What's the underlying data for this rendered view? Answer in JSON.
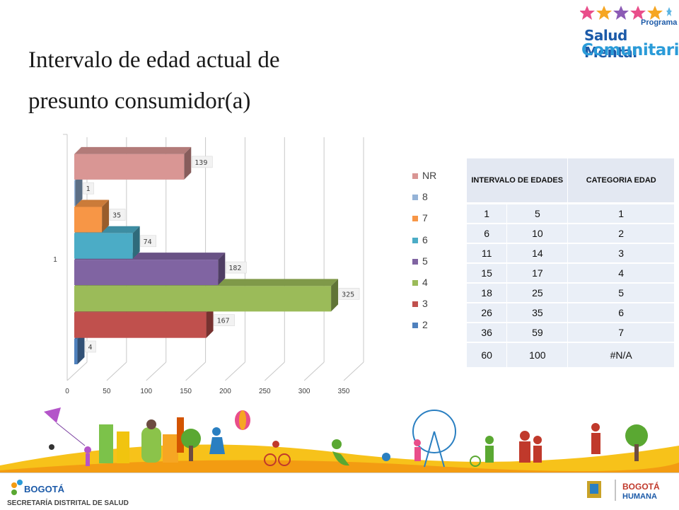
{
  "slide": {
    "title_line1": "Intervalo de edad actual de",
    "title_line2": "presunto consumidor(a)"
  },
  "logo": {
    "program": "Programa",
    "line1": "Salud Mental",
    "line2": "Comunitaria"
  },
  "chart_data": {
    "type": "bar",
    "orientation": "horizontal",
    "style": "3d-clustered",
    "category": "1",
    "series": [
      {
        "name": "2",
        "value": 4,
        "color": "#4f81bd"
      },
      {
        "name": "3",
        "value": 167,
        "color": "#c0504d"
      },
      {
        "name": "4",
        "value": 325,
        "color": "#9bbb59"
      },
      {
        "name": "5",
        "value": 182,
        "color": "#8064a2"
      },
      {
        "name": "6",
        "value": 74,
        "color": "#4bacc6"
      },
      {
        "name": "7",
        "value": 35,
        "color": "#f79646"
      },
      {
        "name": "8",
        "value": 1,
        "color": "#95b3d7"
      },
      {
        "name": "NR",
        "value": 139,
        "color": "#d99694"
      }
    ],
    "xticks": [
      "0",
      "50",
      "100",
      "150",
      "200",
      "250",
      "300",
      "350"
    ],
    "xlim": [
      0,
      350
    ],
    "grid": true,
    "legend_position": "right",
    "legend_order": [
      "NR",
      "8",
      "7",
      "6",
      "5",
      "4",
      "3",
      "2"
    ]
  },
  "table": {
    "header_interval": "INTERVALO DE EDADES",
    "header_category": "CATEGORIA EDAD",
    "rows": [
      {
        "from": "1",
        "to": "5",
        "cat": "1"
      },
      {
        "from": "6",
        "to": "10",
        "cat": "2"
      },
      {
        "from": "11",
        "to": "14",
        "cat": "3"
      },
      {
        "from": "15",
        "to": "17",
        "cat": "4"
      },
      {
        "from": "18",
        "to": "25",
        "cat": "5"
      },
      {
        "from": "26",
        "to": "35",
        "cat": "6"
      },
      {
        "from": "36",
        "to": "59",
        "cat": "7"
      },
      {
        "from": "60",
        "to": "100",
        "cat": "#N/A"
      }
    ]
  },
  "footer": {
    "left_logo": "BOGOTÁ",
    "secretaria": "SECRETARÍA DISTRITAL DE SALUD",
    "right_logo": "BOGOTÁ",
    "right_logo_sub": "HUMANA"
  }
}
